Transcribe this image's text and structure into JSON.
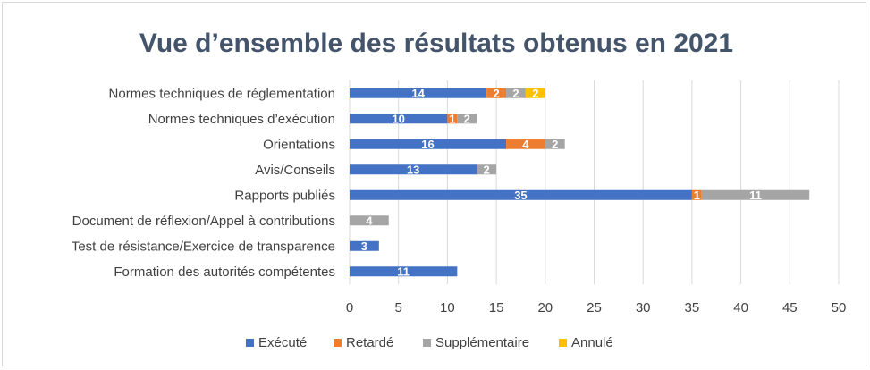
{
  "chart_data": {
    "type": "bar",
    "orientation": "horizontal",
    "stacked": true,
    "title": "Vue d’ensemble des résultats obtenus en 2021",
    "categories": [
      "Normes techniques de réglementation",
      "Normes techniques d’exécution",
      "Orientations",
      "Avis/Conseils",
      "Rapports publiés",
      "Document de réflexion/Appel à contributions",
      "Test de résistance/Exercice de transparence",
      "Formation des autorités compétentes"
    ],
    "series": [
      {
        "name": "Exécuté",
        "color": "#4472c4",
        "values": [
          14,
          10,
          16,
          13,
          35,
          0,
          3,
          11
        ]
      },
      {
        "name": "Retardé",
        "color": "#ed7d31",
        "values": [
          2,
          1,
          4,
          0,
          1,
          0,
          0,
          0
        ]
      },
      {
        "name": "Supplémentaire",
        "color": "#a5a5a5",
        "values": [
          2,
          2,
          2,
          2,
          11,
          4,
          0,
          0
        ]
      },
      {
        "name": "Annulé",
        "color": "#ffc000",
        "values": [
          2,
          0,
          0,
          0,
          0,
          0,
          0,
          0
        ]
      }
    ],
    "xlim": [
      0,
      50
    ],
    "xticks": [
      0,
      5,
      10,
      15,
      20,
      25,
      30,
      35,
      40,
      45,
      50
    ],
    "grid": true,
    "legend_position": "bottom",
    "colors": {
      "gridline": "#d9d9d9",
      "title": "#44546a",
      "text": "#404040"
    }
  }
}
